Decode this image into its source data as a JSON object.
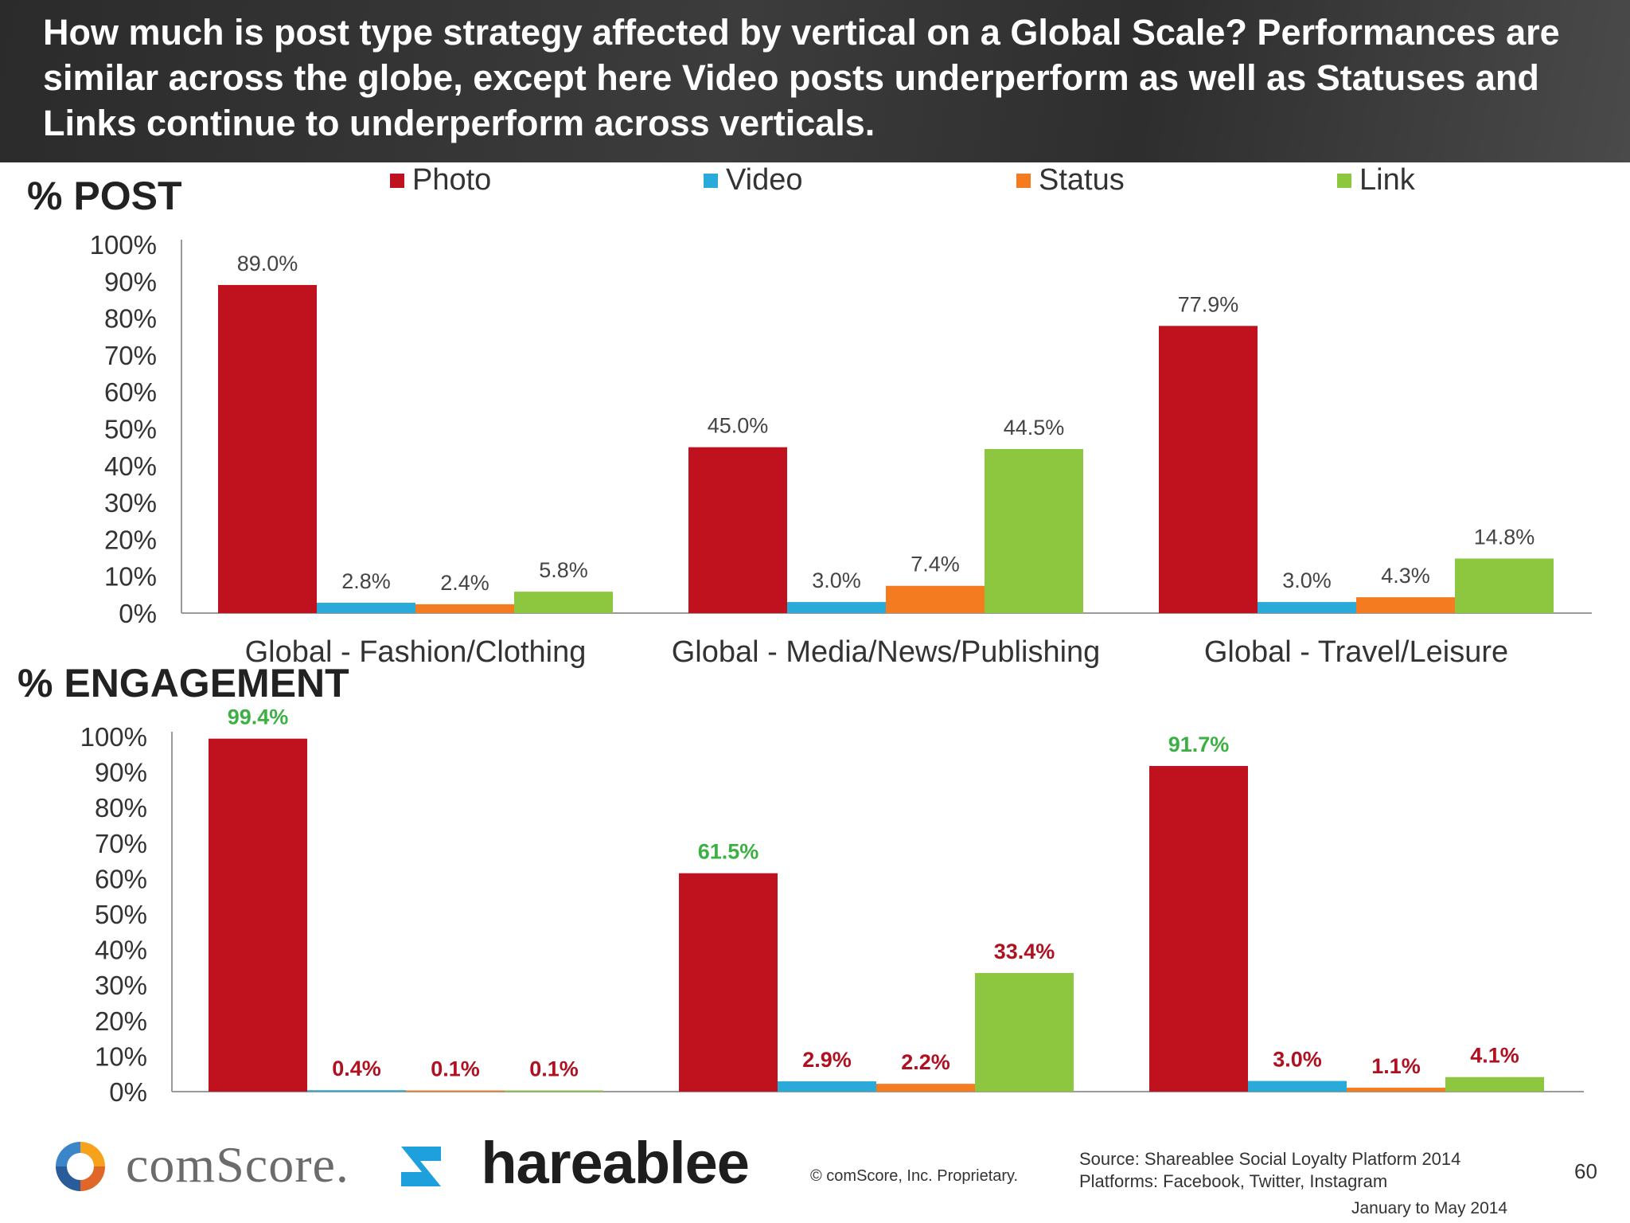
{
  "header": {
    "title": "How much is post type strategy affected by vertical on a Global Scale? Performances are similar across the globe, except here Video posts underperform as well as Statuses and Links continue to underperform across verticals."
  },
  "legend": [
    {
      "label": "Photo",
      "color": "#c0111f"
    },
    {
      "label": "Video",
      "color": "#2aaad9"
    },
    {
      "label": "Status",
      "color": "#f47b20"
    },
    {
      "label": "Link",
      "color": "#8dc63f"
    }
  ],
  "chart_data": [
    {
      "type": "bar",
      "title": "% POST",
      "categories": [
        "Global - Fashion/Clothing",
        "Global - Media/News/Publishing",
        "Global - Travel/Leisure"
      ],
      "series": [
        {
          "name": "Photo",
          "values": [
            89.0,
            45.0,
            77.9
          ],
          "labels": [
            "89.0%",
            "45.0%",
            "77.9%"
          ]
        },
        {
          "name": "Video",
          "values": [
            2.8,
            3.0,
            3.0
          ],
          "labels": [
            "2.8%",
            "3.0%",
            "3.0%"
          ]
        },
        {
          "name": "Status",
          "values": [
            2.4,
            7.4,
            4.3
          ],
          "labels": [
            "2.4%",
            "7.4%",
            "4.3%"
          ]
        },
        {
          "name": "Link",
          "values": [
            5.8,
            44.5,
            14.8
          ],
          "labels": [
            "5.8%",
            "44.5%",
            "14.8%"
          ]
        }
      ],
      "ylim": [
        0,
        100
      ],
      "yticks": [
        "0%",
        "10%",
        "20%",
        "30%",
        "40%",
        "50%",
        "60%",
        "70%",
        "80%",
        "90%",
        "100%"
      ],
      "label_style": "plain",
      "legend_position": "top"
    },
    {
      "type": "bar",
      "title": "% ENGAGEMENT",
      "categories": [
        "Global - Fashion/Clothing",
        "Global - Media/News/Publishing",
        "Global - Travel/Leisure"
      ],
      "series": [
        {
          "name": "Photo",
          "values": [
            99.4,
            61.5,
            91.7
          ],
          "labels": [
            "99.4%",
            "61.5%",
            "91.7%"
          ]
        },
        {
          "name": "Video",
          "values": [
            0.4,
            2.9,
            3.0
          ],
          "labels": [
            "0.4%",
            "2.9%",
            "3.0%"
          ]
        },
        {
          "name": "Status",
          "values": [
            0.1,
            2.2,
            1.1
          ],
          "labels": [
            "0.1%",
            "2.2%",
            "1.1%"
          ]
        },
        {
          "name": "Link",
          "values": [
            0.1,
            33.4,
            4.1
          ],
          "labels": [
            "0.1%",
            "33.4%",
            "4.1%"
          ]
        }
      ],
      "ylim": [
        0,
        100
      ],
      "yticks": [
        "0%",
        "10%",
        "20%",
        "30%",
        "40%",
        "50%",
        "60%",
        "70%",
        "80%",
        "90%",
        "100%"
      ],
      "label_style": "bold",
      "label_colors": {
        "high": "#3cb043",
        "low": "#b01020"
      }
    }
  ],
  "footer": {
    "comscore_logo_text": "comScore.",
    "shareablee_logo_text": "Shareablee",
    "copyright": "© comScore, Inc.    Proprietary.",
    "source_line1": "Source: Shareablee Social Loyalty Platform 2014",
    "source_line2": "Platforms: Facebook, Twitter, Instagram",
    "page_number": "60",
    "date_range": "January to May 2014"
  }
}
